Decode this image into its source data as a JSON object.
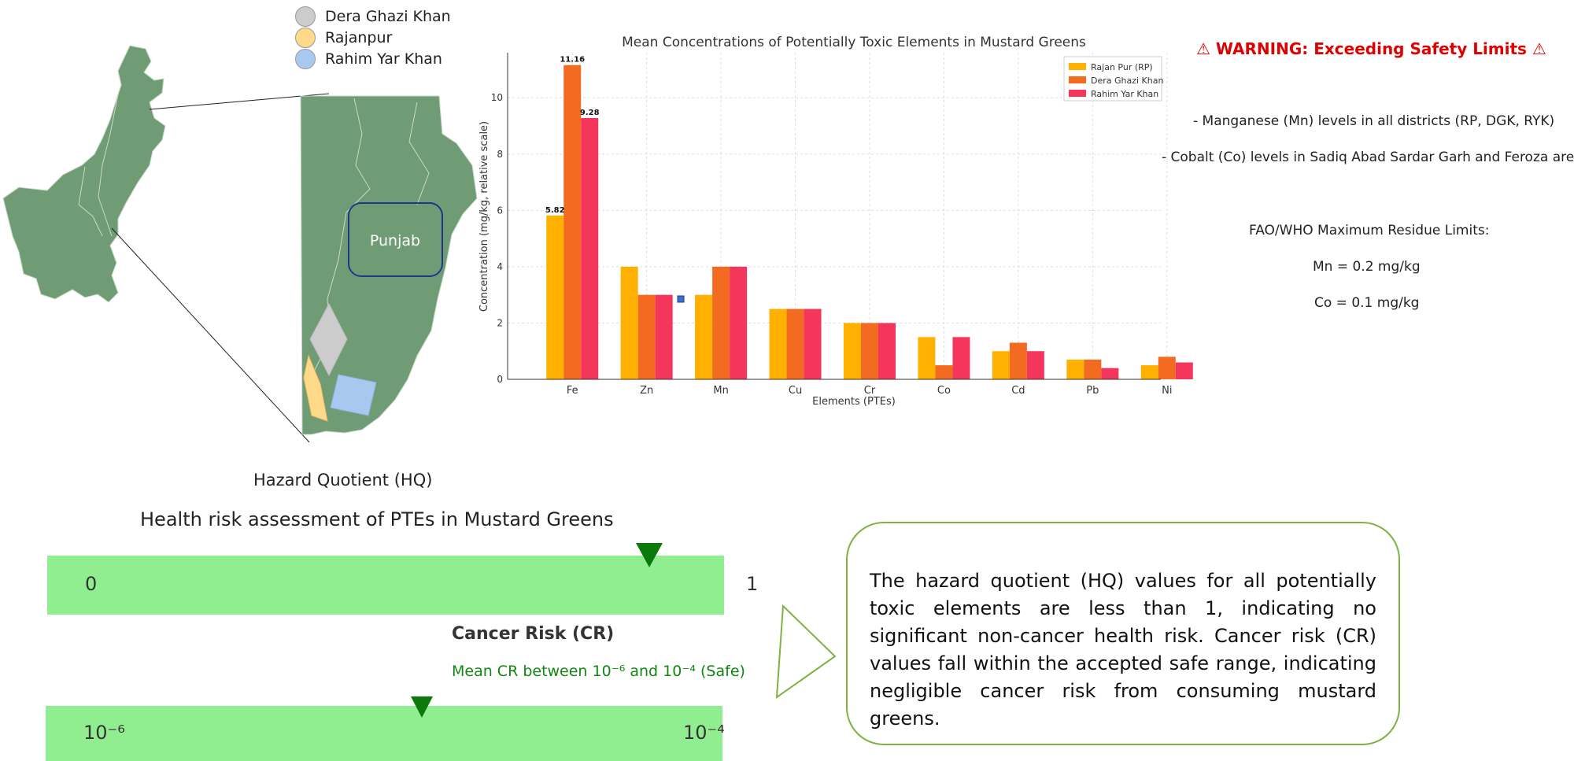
{
  "legend": {
    "items": [
      {
        "label": "Dera Ghazi Khan",
        "color": "#cccccc"
      },
      {
        "label": "Rajanpur",
        "color": "#ffd98a"
      },
      {
        "label": "Rahim Yar Khan",
        "color": "#a9c8f0"
      }
    ]
  },
  "map": {
    "region_label": "Punjab",
    "land_color": "#6f9c74"
  },
  "chart_data": {
    "type": "bar",
    "title": "Mean Concentrations of Potentially Toxic Elements in Mustard Greens",
    "xlabel": "Elements (PTEs)",
    "ylabel": "Concentration (mg/kg, relative scale)",
    "ylim": [
      0,
      11.6
    ],
    "yticks": [
      0,
      2,
      4,
      6,
      8,
      10
    ],
    "categories": [
      "Fe",
      "Zn",
      "Mn",
      "Cu",
      "Cr",
      "Co",
      "Cd",
      "Pb",
      "Ni"
    ],
    "series": [
      {
        "name": "Rajan Pur (RP)",
        "color": "#ffb000",
        "values": [
          5.82,
          4,
          3,
          2.5,
          2,
          1.5,
          1,
          0.7,
          0.5
        ]
      },
      {
        "name": "Dera Ghazi Khan",
        "color": "#f26b21",
        "values": [
          11.16,
          3,
          4,
          2.5,
          2,
          0.5,
          1.3,
          0.7,
          0.8
        ]
      },
      {
        "name": "Rahim Yar Khan",
        "color": "#f5365c",
        "values": [
          9.28,
          3,
          4,
          2.5,
          2,
          1.5,
          1,
          0.4,
          0.6
        ]
      }
    ],
    "data_labels": [
      "5.82",
      "11.16",
      "9.28"
    ],
    "grid": true,
    "legend_position": "top-right"
  },
  "warning": {
    "title": "⚠  WARNING: Exceeding Safety Limits ⚠",
    "line1": "- Manganese (Mn) levels in all districts (RP, DGK, RYK)",
    "line2": "- Cobalt (Co) levels in Sadiq Abad Sardar Garh and Feroza areas",
    "limits_title": "FAO/WHO Maximum Residue Limits:",
    "mn_limit": "Mn = 0.2 mg/kg",
    "co_limit": "Co = 0.1 mg/kg"
  },
  "hq": {
    "title": "Hazard Quotient (HQ)",
    "section_title": "Health risk assessment of PTEs in Mustard Greens",
    "min_label": "0",
    "max_label": "1"
  },
  "cr": {
    "title": "Cancer Risk (CR)",
    "note": "Mean CR between 10⁻⁶ and 10⁻⁴ (Safe)",
    "min_label": "10⁻⁶",
    "max_label": "10⁻⁴"
  },
  "summary": {
    "text": "The hazard quotient (HQ) values for all potentially toxic elements are less than 1, indicating no significant non-cancer health risk. Cancer risk (CR) values fall within the accepted safe range, indicating negligible cancer risk from consuming mustard greens."
  },
  "colors": {
    "strip": "#90ee90",
    "marker": "#0b7a0b",
    "warning": "#e00000",
    "box_border": "#7cb342"
  }
}
